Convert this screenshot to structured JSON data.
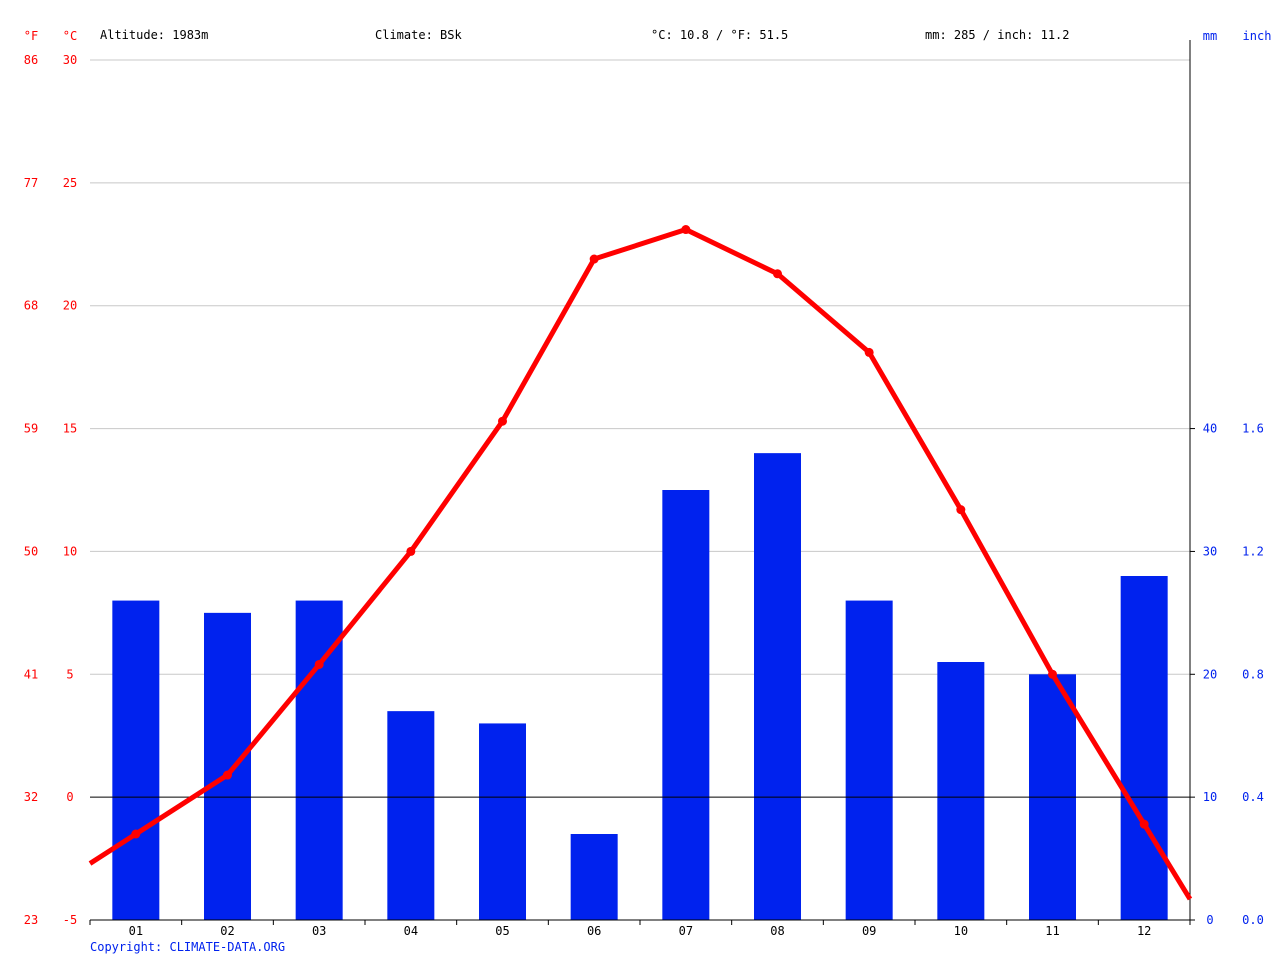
{
  "header": {
    "altitude": "Altitude: 1983m",
    "climate": "Climate: BSk",
    "avg_temp": "°C: 10.8 / °F: 51.5",
    "precip_total": "mm: 285 / inch: 11.2"
  },
  "units": {
    "f": "°F",
    "c": "°C",
    "mm": "mm",
    "inch": "inch"
  },
  "copyright": "Copyright: CLIMATE-DATA.ORG",
  "colors": {
    "temp": "#ff0000",
    "precip": "#0022ee",
    "grid": "#c8c8c8",
    "axis": "#000000"
  },
  "chart_data": {
    "type": "bar+line",
    "categories": [
      "01",
      "02",
      "03",
      "04",
      "05",
      "06",
      "07",
      "08",
      "09",
      "10",
      "11",
      "12"
    ],
    "series": [
      {
        "kind": "line",
        "axis": "left",
        "values": [
          -1.5,
          0.9,
          5.4,
          10.0,
          15.3,
          21.9,
          23.1,
          21.3,
          18.1,
          11.7,
          5.0,
          -1.1
        ]
      },
      {
        "kind": "bar",
        "axis": "right",
        "values": [
          26,
          25,
          26,
          17,
          16,
          7,
          35,
          38,
          26,
          21,
          20,
          28
        ]
      }
    ],
    "temp_axis": {
      "ylim": [
        -5,
        30
      ],
      "c_ticks": [
        30,
        25,
        20,
        15,
        10,
        5,
        0,
        -5
      ],
      "f_ticks": [
        86,
        77,
        68,
        59,
        50,
        41,
        32,
        23
      ]
    },
    "precip_axis": {
      "ylim": [
        0,
        70
      ],
      "mm_ticks": [
        40,
        30,
        20,
        10,
        0
      ],
      "inch_ticks": [
        "1.6",
        "1.2",
        "0.8",
        "0.4",
        "0.0"
      ]
    },
    "grid": true
  }
}
